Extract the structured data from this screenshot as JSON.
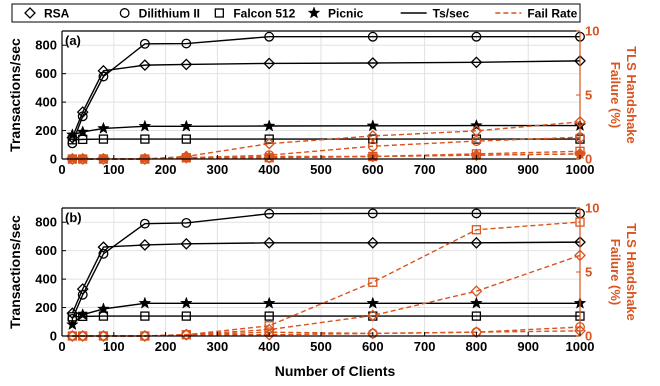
{
  "legend": {
    "entries": [
      {
        "label": "RSA",
        "marker": "diamond",
        "style": "solid",
        "color": "#000000"
      },
      {
        "label": "Dilithium II",
        "marker": "circle",
        "style": "solid",
        "color": "#000000"
      },
      {
        "label": "Falcon 512",
        "marker": "square",
        "style": "solid",
        "color": "#000000"
      },
      {
        "label": "Picnic",
        "marker": "star",
        "style": "solid",
        "color": "#000000"
      },
      {
        "label": "Ts/sec",
        "marker": "none",
        "style": "solid",
        "color": "#000000"
      },
      {
        "label": "Fail Rate",
        "marker": "none",
        "style": "dashed",
        "color": "#d9541e"
      }
    ]
  },
  "shared": {
    "xlabel": "Number of Clients",
    "ylabel_left": "Transactions/sec",
    "ylabel_right_line1": "TLS Handshake",
    "ylabel_right_line2": "Failure (%)"
  },
  "chart_data": [
    {
      "type": "line",
      "panel_label": "(a)",
      "x": [
        20,
        40,
        80,
        160,
        240,
        400,
        600,
        800,
        1000
      ],
      "xlim": [
        0,
        1000
      ],
      "xticks": [
        0,
        100,
        200,
        300,
        400,
        500,
        600,
        700,
        800,
        900,
        1000
      ],
      "ylim_left": [
        0,
        900
      ],
      "yticks_left": [
        0,
        200,
        400,
        600,
        800
      ],
      "ylim_right": [
        0,
        10
      ],
      "yticks_right": [
        0,
        5,
        10
      ],
      "grid": true,
      "left_series": [
        {
          "name": "RSA",
          "marker": "diamond",
          "values": [
            150,
            330,
            620,
            660,
            665,
            672,
            675,
            680,
            690
          ]
        },
        {
          "name": "Dilithium II",
          "marker": "circle",
          "values": [
            110,
            300,
            580,
            810,
            812,
            860,
            860,
            860,
            860
          ]
        },
        {
          "name": "Falcon 512",
          "marker": "square",
          "values": [
            135,
            138,
            140,
            140,
            140,
            140,
            140,
            140,
            140
          ]
        },
        {
          "name": "Picnic",
          "marker": "star",
          "values": [
            170,
            190,
            215,
            230,
            230,
            232,
            233,
            235,
            235
          ]
        }
      ],
      "right_series": [
        {
          "name": "RSA",
          "marker": "diamond",
          "values": [
            0,
            0,
            0,
            0,
            0.1,
            0.1,
            0.2,
            0.3,
            0.4
          ]
        },
        {
          "name": "Dilithium II",
          "marker": "circle",
          "values": [
            0,
            0,
            0,
            0,
            0.1,
            0.3,
            1.0,
            1.4,
            1.7
          ]
        },
        {
          "name": "Falcon 512",
          "marker": "square",
          "values": [
            0,
            0,
            0,
            0,
            0.1,
            0.1,
            0.2,
            0.4,
            0.6
          ]
        },
        {
          "name": "Picnic",
          "marker": "star",
          "values": [
            0,
            0,
            0,
            0,
            0.1,
            0.2,
            0.2,
            0.3,
            0.4
          ]
        },
        {
          "name": "",
          "marker": "diamond",
          "values": [
            0,
            0,
            0,
            0,
            0.2,
            1.2,
            1.8,
            2.2,
            2.9
          ]
        }
      ]
    },
    {
      "type": "line",
      "panel_label": "(b)",
      "x": [
        20,
        40,
        80,
        160,
        240,
        400,
        600,
        800,
        1000
      ],
      "xlim": [
        0,
        1000
      ],
      "xticks": [
        0,
        100,
        200,
        300,
        400,
        500,
        600,
        700,
        800,
        900,
        1000
      ],
      "ylim_left": [
        0,
        900
      ],
      "yticks_left": [
        0,
        200,
        400,
        600,
        800
      ],
      "ylim_right": [
        0,
        10
      ],
      "yticks_right": [
        0,
        5,
        10
      ],
      "grid": true,
      "left_series": [
        {
          "name": "RSA",
          "marker": "diamond",
          "values": [
            160,
            330,
            625,
            640,
            648,
            655,
            655,
            655,
            660
          ]
        },
        {
          "name": "Dilithium II",
          "marker": "circle",
          "values": [
            120,
            290,
            578,
            790,
            795,
            860,
            862,
            862,
            862
          ]
        },
        {
          "name": "Falcon 512",
          "marker": "square",
          "values": [
            135,
            138,
            140,
            140,
            140,
            140,
            140,
            140,
            140
          ]
        },
        {
          "name": "Picnic",
          "marker": "star",
          "values": [
            80,
            150,
            190,
            230,
            230,
            230,
            230,
            230,
            230
          ]
        }
      ],
      "right_series": [
        {
          "name": "Dilithium II",
          "marker": "square",
          "values": [
            0,
            0,
            0,
            0,
            0.1,
            0.8,
            4.2,
            8.3,
            8.9
          ]
        },
        {
          "name": "Picnic",
          "marker": "diamond",
          "values": [
            0,
            0,
            0,
            0,
            0.1,
            0.5,
            1.6,
            3.5,
            6.3
          ]
        },
        {
          "name": "RSA",
          "marker": "circle",
          "values": [
            0,
            0,
            0,
            0,
            0.1,
            0.3,
            0.2,
            0.3,
            0.7
          ]
        },
        {
          "name": "Falcon 512",
          "marker": "diamond",
          "values": [
            0,
            0,
            0,
            0,
            0.1,
            0.1,
            0.2,
            0.3,
            0.4
          ]
        }
      ]
    }
  ]
}
